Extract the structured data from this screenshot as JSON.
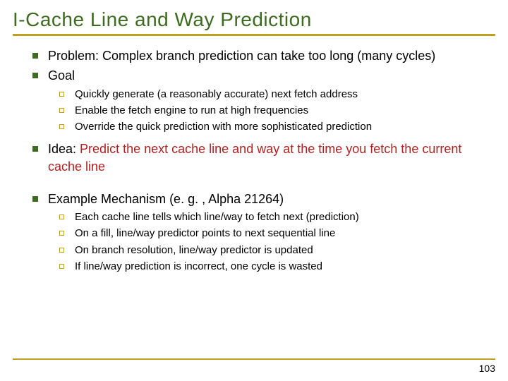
{
  "title": "I-Cache Line and Way Prediction",
  "page_number": "103",
  "colors": {
    "title": "#3d6b1f",
    "accent_line": "#c0a020",
    "bullet_l1": "#3d6b1f",
    "bullet_l2_border": "#c0a020",
    "text_black": "#000000",
    "text_red": "#b02020",
    "background": "#ffffff"
  },
  "typography": {
    "title_fontsize": 28,
    "l1_fontsize": 18,
    "l2_fontsize": 15,
    "font_family": "Verdana"
  },
  "items": {
    "problem": "Problem: Complex branch prediction can take too long (many cycles)",
    "goal": "Goal",
    "goal_subs": [
      "Quickly generate (a reasonably accurate) next fetch address",
      "Enable the fetch engine to run at high frequencies",
      "Override the quick prediction with more sophisticated prediction"
    ],
    "idea_prefix": "Idea: ",
    "idea_red": "Predict the next cache line and way at the time you fetch the current cache line",
    "example": "Example Mechanism (e. g. , Alpha 21264)",
    "example_subs": [
      "Each cache line tells which line/way to fetch next (prediction)",
      "On a fill, line/way predictor points to next sequential line",
      "On branch resolution, line/way predictor is updated",
      "If line/way prediction is incorrect, one cycle is wasted"
    ]
  }
}
